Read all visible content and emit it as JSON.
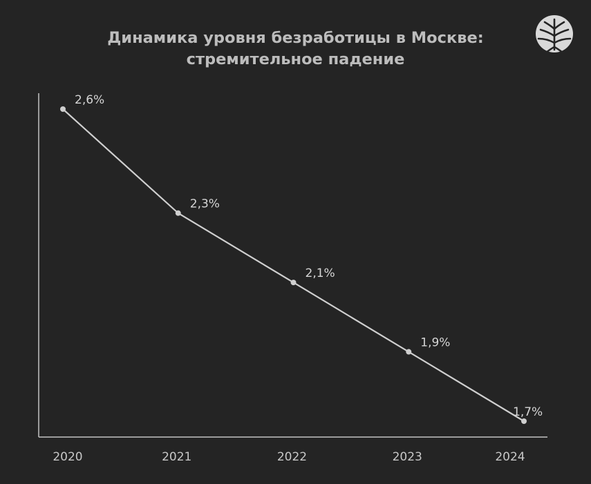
{
  "chart_data": {
    "type": "line",
    "title": [
      "Динамика уровня безработицы в Москве:",
      "стремительное падение"
    ],
    "xlabel": "",
    "ylabel": "",
    "categories": [
      "2020",
      "2021",
      "2022",
      "2023",
      "2024"
    ],
    "series": [
      {
        "values": [
          2.6,
          2.3,
          2.1,
          1.9,
          1.7
        ],
        "labels": [
          "2,6%",
          "2,3%",
          "2,1%",
          "1,9%",
          "1,7%"
        ],
        "color": "#cfcfcf"
      }
    ],
    "grid": false,
    "legend": "none"
  },
  "colors": {
    "background": "#242424",
    "line": "#cfcfcf",
    "text": "#bdbdbd"
  },
  "logo": {
    "icon": "tree-crown-logo-icon"
  }
}
